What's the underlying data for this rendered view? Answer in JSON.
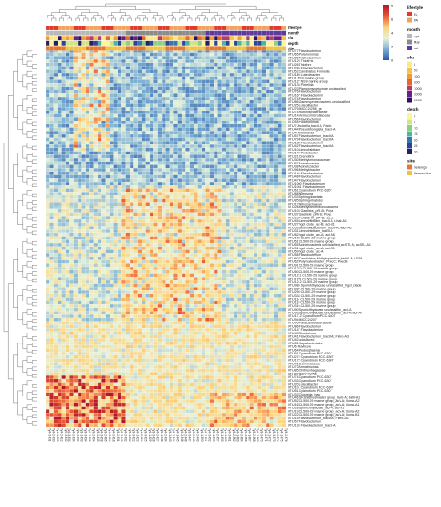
{
  "chart_data": {
    "type": "heatmap",
    "annotation_rows": [
      "lifestyle",
      "month",
      "sfu",
      "depth",
      "site"
    ],
    "rows": [
      "OTU77 Flavobacterium",
      "OTU65 Polaromonas",
      "OTU80 Trichodesmium",
      "OTU125 Thiothrix",
      "OTU26 Thiothrix",
      "OTU245 Flavobacterium",
      "OTU52 Candidatus Fonnella",
      "OTU189 Luteolibacter",
      "OTU1 NS9 marine group",
      "OTU127 NS9 marine group",
      "OTU135 Pirrellula",
      "OTU23 Planctomycetaceae unclassified",
      "OTU76 Flavobacterium",
      "OTU167 Flavobacterium",
      "OTU74 Flavobacterium",
      "OTU86 Gammaproteobacteria unclassified",
      "OTU25 Luteolibacter",
      "OTU75 IMCC26256_ge",
      "OTU74 Rubinisphaeraceae",
      "OTU14 Verrucomicrobiaceae",
      "OTU56 Flavobacterium",
      "OTU54 Polaromonas",
      "OTU7 Arcicella_bacII-A; Facto",
      "OTU44 Pseudohongiella_bacII-A",
      "OTU4 Rhodoferax",
      "OTU57 Flavobacterium_bacII-A",
      "OTU79 Flavobacterium_bacII-A",
      "OTU138 Flavobacterium",
      "OTU42 Flavobacterium_bacII-A",
      "OTU10 Limnohabitans",
      "OTU149 Pedobacter",
      "OTU21 Crenothrix",
      "OTU30 Methylomonadaceae",
      "OTU57 Acinetobacter",
      "OTU38 Acinetobacter",
      "OTU96 Methylobacter",
      "OTU146 Flavobacterium",
      "OTU48 Flavobacterium",
      "OTU47 Flavobacterium",
      "OTU1000 Flavobacterium",
      "OTU1001 Flavobacterium",
      "OTU61 Cyanobium PCC-6307",
      "OTU88 Nitrospira",
      "OTU33 Sphingobacteria",
      "OTU85 Sphingorhabdus",
      "OTU12 Nitrosarchaeum",
      "OTU26 Methylotenera unclassified",
      "OTU103 Gaelleks_pRr-B; Poya",
      "OTU37 Gaelleks_pRr-B; Poya",
      "OTU105 Clade_III_pRr-B; 1212",
      "OTU45 Limnohabitans_bacII-A; Lhab-A1",
      "OTU27 hgcI clade_acI-B; acI-B1",
      "OTU53 Sediminibacterium_bacII-A; bacI-A1",
      "OTU31 Limnohabitans_bacII-A",
      "OTU82 hgcI clade_acI-A; acI-A6",
      "OTU102 CL500-29 marine group",
      "OTU51 CL500-29 marine group",
      "OTU55 Acinetobacteria unclassified_acSTL-A; acSTL-A1",
      "OTU31 hgcI clade_acI-A; acI-C1",
      "OTU59 hgcI clade_acI-A",
      "OTU58 Flavobacterium",
      "OTU60 Candidatus Methylopumilus_betVI-A; LD28",
      "OTU62 Polynucleobacter_PnecC; PnecB",
      "OTU91 CL500-29 marine group",
      "OTU1210 CL500-29 marine group",
      "OTU50 CL500-29 marine group",
      "OTU1211 CL500-29 marine group",
      "OTU1115 CL500-29 marine group",
      "OTU1212 CL500-29 marine group",
      "OTU984 Sporichthyaceae unclassified_hgcI_clade",
      "OTU287 CL500-29 marine group",
      "OTU296 CL500-29 marine group",
      "OTU334 CL500-29 marine group",
      "OTU114 CL500-29 marine group",
      "OTU119 CL500-29 marine group",
      "OTU316 CL500-29 marine group",
      "OTU90 Sporichthyaceae unclassified_acI-A",
      "OTU93 Sporichthyaceae unclassified_acI-A; acI-A7",
      "OTU1712 Cyanobium PCC-6307",
      "OTU94 IMCC26207",
      "OTU95 Paracaedibacteraceae",
      "OTU86 Flavobacterium",
      "OTU147 Flavobacterium",
      "OTU43 Rhodoferax",
      "OTU41 Flavobacterium_bacII-A; Flavo-A3",
      "OTU42 uncultured",
      "OTU81 Kapabacteriales",
      "OTU6 Fluviicola",
      "OTU64 Pedosphaerae",
      "OTU91 Cyanobium PCC-6307",
      "OTU272 Cyanobium PCC-6307",
      "OTU172 Cyanobium PCC-6307",
      "OTU71 Gemmataceae",
      "OTU73 Armatimonas",
      "OTU85 Chitinophagaceae",
      "OTU87 IMCC26256",
      "OTU74 Cyanobium PCC-6307",
      "OTU33 Cyanobium PCC-6307",
      "OTU20 Luteolibacter",
      "OTU101 Cyanobium PCC-6307",
      "OTU51 Cyanobium PCC-6307",
      "OTU33 Clostridia_bacI",
      "OTU46 GKS98 freshwater group_betII-A; betII-A1",
      "OTU52 CL500-29 marine group_acV-A; Iluma-A2",
      "OTU16 CL500-29 marine group_acV-A; Iluma-A1",
      "OTU28 Sporichthyaceae_acI-A; acI-A1",
      "OTU19 CL500-29 marine group_acV-A; Iluma-A2",
      "OTU22 CL500-29 marine group_acV-A; Iluma-B1",
      "OTU15 Flavobacterium_bacII-A; Flavo-A1",
      "OTU57 Flavobacterium",
      "OTU134 Flavobacterium_bacII-A"
    ],
    "columns": [
      "Ty4-3-F31",
      "Ty4-2-F30",
      "Ty4-1-F33",
      "Ty4-2-F12",
      "Ty5-3-F42",
      "Ty4-3-F34",
      "Ty4-1-F34",
      "Ty4-3-F35",
      "Ty3-1-F53",
      "Ty3-3-F34",
      "Ty4-1-F56",
      "Ty3-2-F54",
      "Ty3-1-F45",
      "Ty4-3-F58",
      "Ty3-2-F65",
      "Ty4-3-F14",
      "Ty4-1-F18",
      "Ty3-2-F31",
      "Ty3-3-F45",
      "Ty4-2-F32",
      "Ty3-1-F42",
      "Ty3-3-F22",
      "Ty4-1-F22",
      "Ty4-2-F24",
      "Ty3-3-F25",
      "Ty4-1-F25",
      "Ty3-3-F26",
      "Ty4-2-F27",
      "Ty4-1-F36",
      "Ty4-2-F34",
      "Ty3-1-F43",
      "Ty3-2-F44",
      "Ty4-1-F45",
      "Ty4-2-F46",
      "Ty4-2-F46",
      "Ty3-3-F47",
      "Ty3-1-F48",
      "Ty4-2-F49",
      "Ty4-1-F50",
      "Ty3-2-F51",
      "Ty4-3-F52",
      "Ty4-1-F55",
      "Ty4-2-F57",
      "Ty3-1-F59",
      "Ty4-1-F60",
      "Ty4-3-F61",
      "Ty3-2-F62",
      "Ty4-1-F63",
      "Ty4-2-F64",
      "Ty4-3-F66",
      "Ty4-1-F67",
      "Ty3-2-F68",
      "Ty4-1-F69",
      "Ty3-3-F70",
      "Ty4-2-F71",
      "Ty4-1-F72",
      "Ty3-3-F73",
      "Ty4-3-F74",
      "Ty4-1-F75",
      "Ty3-2-F76"
    ],
    "color_scale": {
      "min": 0,
      "max": 8,
      "ticks": [
        0,
        2,
        4,
        6,
        8
      ],
      "colors": [
        "#2f55a4",
        "#7aaed3",
        "#e8f2d8",
        "#fdd37c",
        "#ea5a35",
        "#b2182b"
      ]
    },
    "legend": [
      {
        "title": "lifestyle",
        "items": [
          {
            "label": "FL",
            "color": "#e03a2e"
          },
          {
            "label": "PA",
            "color": "#f4a259"
          }
        ]
      },
      {
        "title": "month",
        "items": [
          {
            "label": "Apr",
            "color": "#b8b8b8"
          },
          {
            "label": "Mar",
            "color": "#8a8a8a"
          },
          {
            "label": "Jul",
            "color": "#5e3a9a"
          }
        ]
      },
      {
        "title": "sfu",
        "ticks": [
          "0",
          "50",
          "100",
          "200",
          "1000",
          "3000",
          "5000"
        ],
        "colors": [
          "#fbe985",
          "#f9c04a",
          "#f39a34",
          "#e26a2c",
          "#b43c6b",
          "#6a1f86",
          "#2b1260"
        ]
      },
      {
        "title": "depth",
        "ticks": [
          "0",
          "5",
          "10",
          "15",
          "20",
          "25",
          "30"
        ],
        "colors": [
          "#fdf59a",
          "#cfe58a",
          "#8ed07f",
          "#4bb4a5",
          "#3577b1",
          "#2e4595",
          "#262060"
        ]
      },
      {
        "title": "site",
        "items": [
          {
            "label": "Selenga",
            "color": "#e8782c"
          },
          {
            "label": "Varnachka",
            "color": "#f4c242"
          }
        ]
      }
    ],
    "grid": true
  }
}
